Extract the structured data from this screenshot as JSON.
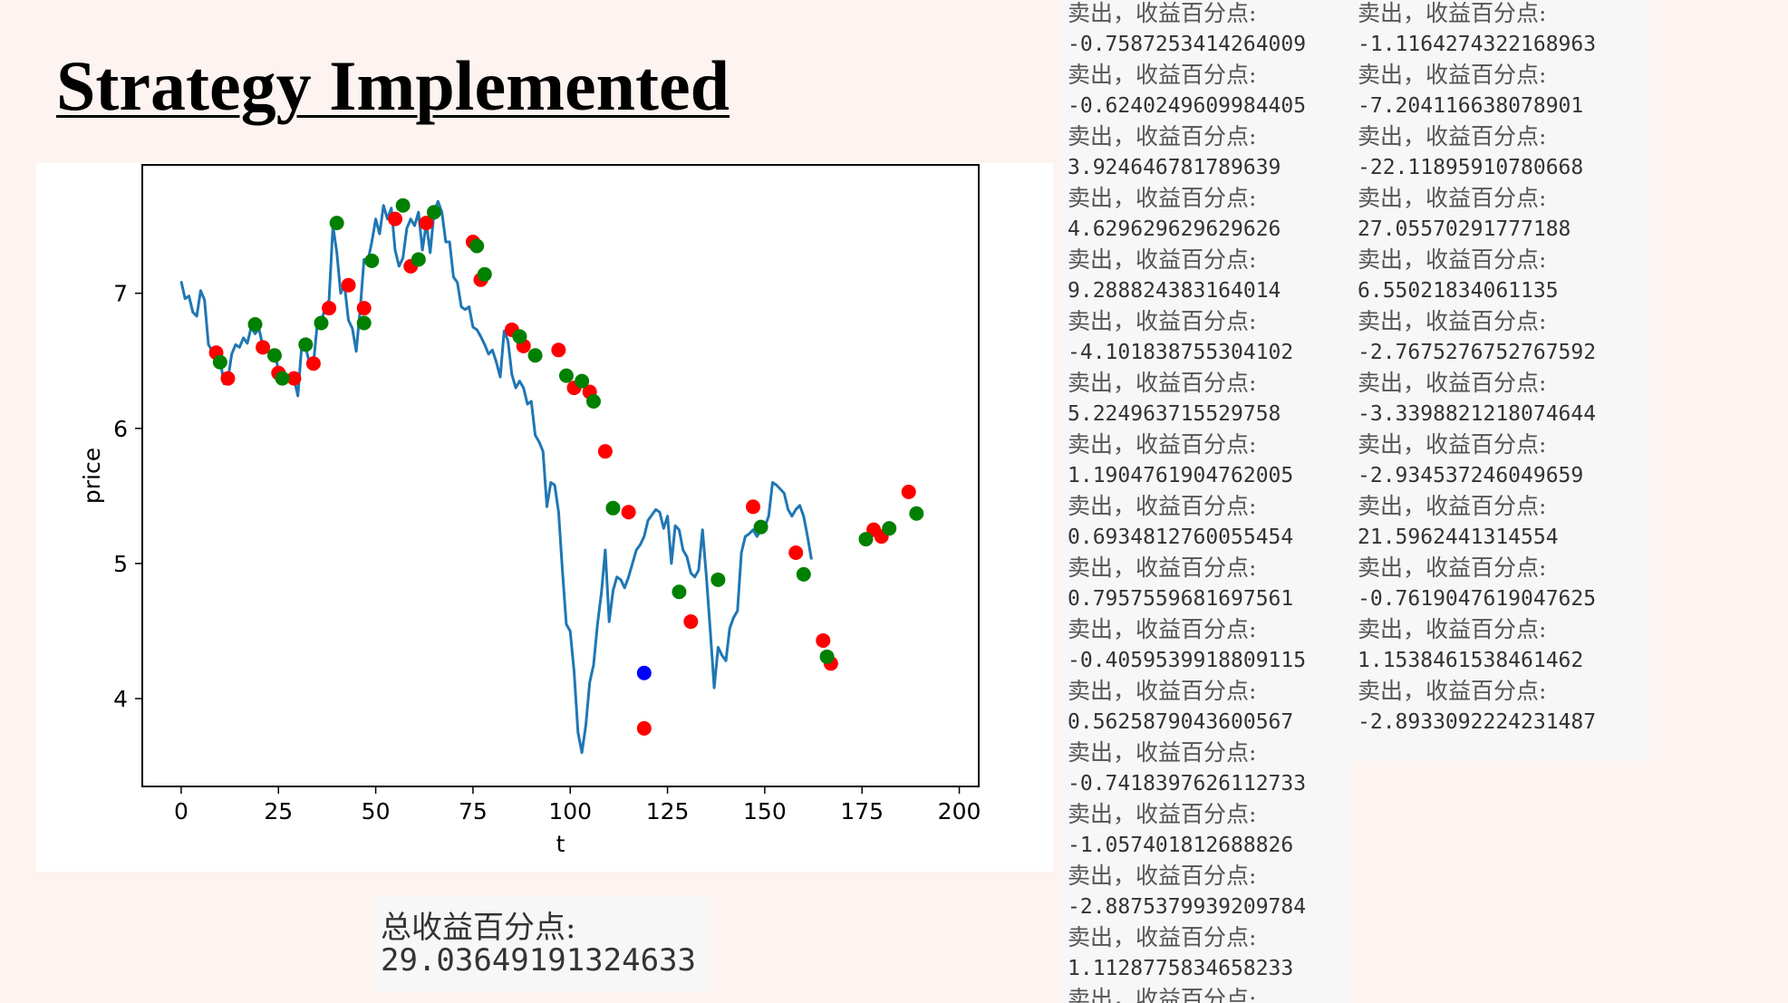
{
  "title": "Strategy Implemented",
  "total": {
    "label": "总收益百分点:",
    "value": "29.03649191324633"
  },
  "log": {
    "label": "卖出，收益百分点:",
    "column1": [
      "-0.7587253414264009",
      "-0.6240249609984405",
      "3.924646781789639",
      "4.629629629629626",
      "9.288824383164014",
      "-4.101838755304102",
      "5.224963715529758",
      "1.1904761904762005",
      "0.6934812760055454",
      "0.7957559681697561",
      "-0.4059539918809115",
      "0.5625879043600567",
      "-0.7418397626112733",
      "-1.057401812688826",
      "-2.8875379939209784",
      "1.1128775834658233"
    ],
    "column2": [
      "-1.1164274322168963",
      "-7.20411663807890​1",
      "-22.11895910780668",
      "27.05570291777188",
      "6.55021834061135",
      "-2.7675276752767592",
      "-3.3398821218074644",
      "-2.934537246049659",
      "21.5962441314554",
      "-0.7619047619047625",
      "1.1538461538461462",
      "-2.8933092224231487"
    ]
  },
  "chart_data": {
    "type": "line",
    "xlabel": "t",
    "ylabel": "price",
    "xlim": [
      -10,
      205
    ],
    "ylim": [
      3.35,
      7.95
    ],
    "xticks": [
      0,
      25,
      50,
      75,
      100,
      125,
      150,
      175,
      200
    ],
    "yticks": [
      4,
      5,
      6,
      7
    ],
    "colors": {
      "line": "#1f77b4",
      "sell": "#ff0000",
      "buy": "#008000",
      "other": "#0000ff"
    },
    "series": [
      {
        "name": "price",
        "points": [
          [
            0,
            7.09
          ],
          [
            1,
            6.96
          ],
          [
            2,
            6.98
          ],
          [
            3,
            6.86
          ],
          [
            4,
            6.83
          ],
          [
            5,
            7.02
          ],
          [
            6,
            6.95
          ],
          [
            7,
            6.62
          ],
          [
            8,
            6.57
          ],
          [
            9,
            6.52
          ],
          [
            10,
            6.51
          ],
          [
            11,
            6.33
          ],
          [
            12,
            6.36
          ],
          [
            13,
            6.55
          ],
          [
            14,
            6.62
          ],
          [
            15,
            6.6
          ],
          [
            16,
            6.67
          ],
          [
            17,
            6.63
          ],
          [
            18,
            6.75
          ],
          [
            19,
            6.7
          ],
          [
            20,
            6.74
          ],
          [
            21,
            6.6
          ],
          [
            22,
            6.58
          ],
          [
            23,
            6.54
          ],
          [
            24,
            6.56
          ],
          [
            25,
            6.43
          ],
          [
            26,
            6.37
          ],
          [
            27,
            6.38
          ],
          [
            28,
            6.35
          ],
          [
            29,
            6.37
          ],
          [
            30,
            6.24
          ],
          [
            31,
            6.62
          ],
          [
            32,
            6.6
          ],
          [
            33,
            6.48
          ],
          [
            34,
            6.48
          ],
          [
            35,
            6.78
          ],
          [
            36,
            6.78
          ],
          [
            37,
            6.9
          ],
          [
            38,
            6.95
          ],
          [
            39,
            7.5
          ],
          [
            40,
            7.3
          ],
          [
            41,
            7.0
          ],
          [
            42,
            7.06
          ],
          [
            43,
            6.8
          ],
          [
            44,
            6.74
          ],
          [
            45,
            6.57
          ],
          [
            46,
            6.88
          ],
          [
            47,
            7.25
          ],
          [
            48,
            7.24
          ],
          [
            49,
            7.38
          ],
          [
            50,
            7.55
          ],
          [
            51,
            7.44
          ],
          [
            52,
            7.65
          ],
          [
            53,
            7.55
          ],
          [
            54,
            7.63
          ],
          [
            55,
            7.32
          ],
          [
            56,
            7.2
          ],
          [
            57,
            7.26
          ],
          [
            58,
            7.48
          ],
          [
            59,
            7.55
          ],
          [
            60,
            7.5
          ],
          [
            61,
            7.6
          ],
          [
            62,
            7.32
          ],
          [
            63,
            7.52
          ],
          [
            64,
            7.3
          ],
          [
            65,
            7.6
          ],
          [
            66,
            7.68
          ],
          [
            67,
            7.6
          ],
          [
            68,
            7.38
          ],
          [
            69,
            7.38
          ],
          [
            70,
            7.12
          ],
          [
            71,
            7.08
          ],
          [
            72,
            6.9
          ],
          [
            73,
            6.88
          ],
          [
            74,
            6.9
          ],
          [
            75,
            6.75
          ],
          [
            76,
            6.73
          ],
          [
            77,
            6.68
          ],
          [
            78,
            6.62
          ],
          [
            79,
            6.55
          ],
          [
            80,
            6.58
          ],
          [
            81,
            6.49
          ],
          [
            82,
            6.38
          ],
          [
            83,
            6.72
          ],
          [
            84,
            6.65
          ],
          [
            85,
            6.4
          ],
          [
            86,
            6.3
          ],
          [
            87,
            6.35
          ],
          [
            88,
            6.3
          ],
          [
            89,
            6.18
          ],
          [
            90,
            6.2
          ],
          [
            91,
            5.95
          ],
          [
            92,
            5.9
          ],
          [
            93,
            5.83
          ],
          [
            94,
            5.42
          ],
          [
            95,
            5.6
          ],
          [
            96,
            5.58
          ],
          [
            97,
            5.38
          ],
          [
            98,
            4.95
          ],
          [
            99,
            4.55
          ],
          [
            100,
            4.5
          ],
          [
            101,
            4.2
          ],
          [
            102,
            3.75
          ],
          [
            103,
            3.6
          ],
          [
            104,
            3.8
          ],
          [
            105,
            4.12
          ],
          [
            106,
            4.25
          ],
          [
            107,
            4.55
          ],
          [
            108,
            4.78
          ],
          [
            109,
            5.1
          ],
          [
            110,
            4.57
          ],
          [
            111,
            4.8
          ],
          [
            112,
            4.9
          ],
          [
            113,
            4.88
          ],
          [
            114,
            4.82
          ],
          [
            115,
            4.9
          ],
          [
            116,
            5.0
          ],
          [
            117,
            5.1
          ],
          [
            118,
            5.14
          ],
          [
            119,
            5.2
          ],
          [
            120,
            5.32
          ],
          [
            121,
            5.36
          ],
          [
            122,
            5.4
          ],
          [
            123,
            5.38
          ],
          [
            124,
            5.26
          ],
          [
            125,
            5.35
          ],
          [
            126,
            5.0
          ],
          [
            127,
            5.28
          ],
          [
            128,
            5.25
          ],
          [
            129,
            5.1
          ],
          [
            130,
            5.05
          ],
          [
            131,
            4.93
          ],
          [
            132,
            4.9
          ],
          [
            133,
            4.95
          ],
          [
            134,
            5.25
          ],
          [
            135,
            4.9
          ],
          [
            136,
            4.5
          ],
          [
            137,
            4.08
          ],
          [
            138,
            4.38
          ],
          [
            139,
            4.32
          ],
          [
            140,
            4.28
          ],
          [
            141,
            4.52
          ],
          [
            142,
            4.6
          ],
          [
            143,
            4.65
          ],
          [
            144,
            5.08
          ],
          [
            145,
            5.2
          ],
          [
            146,
            5.22
          ],
          [
            147,
            5.25
          ],
          [
            148,
            5.2
          ],
          [
            149,
            5.25
          ],
          [
            150,
            5.27
          ],
          [
            151,
            5.35
          ],
          [
            152,
            5.6
          ],
          [
            153,
            5.58
          ],
          [
            154,
            5.55
          ],
          [
            155,
            5.52
          ],
          [
            156,
            5.4
          ],
          [
            157,
            5.35
          ],
          [
            158,
            5.4
          ],
          [
            159,
            5.43
          ],
          [
            160,
            5.35
          ],
          [
            161,
            5.2
          ],
          [
            162,
            5.03
          ]
        ]
      }
    ],
    "markers": {
      "sell": [
        [
          9,
          6.56
        ],
        [
          12,
          6.37
        ],
        [
          21,
          6.6
        ],
        [
          25,
          6.41
        ],
        [
          29,
          6.37
        ],
        [
          34,
          6.48
        ],
        [
          38,
          6.89
        ],
        [
          43,
          7.06
        ],
        [
          47,
          6.89
        ],
        [
          55,
          7.55
        ],
        [
          59,
          7.2
        ],
        [
          63,
          7.52
        ],
        [
          75,
          7.38
        ],
        [
          77,
          7.1
        ],
        [
          85,
          6.73
        ],
        [
          88,
          6.61
        ],
        [
          97,
          6.58
        ],
        [
          101,
          6.3
        ],
        [
          105,
          6.27
        ],
        [
          109,
          5.83
        ],
        [
          115,
          5.38
        ],
        [
          119,
          3.78
        ],
        [
          131,
          4.57
        ],
        [
          147,
          5.42
        ],
        [
          158,
          5.08
        ],
        [
          165,
          4.43
        ],
        [
          167,
          4.26
        ],
        [
          178,
          5.25
        ],
        [
          180,
          5.2
        ],
        [
          187,
          5.53
        ]
      ],
      "buy": [
        [
          10,
          6.49
        ],
        [
          19,
          6.77
        ],
        [
          24,
          6.54
        ],
        [
          26,
          6.37
        ],
        [
          32,
          6.62
        ],
        [
          36,
          6.78
        ],
        [
          40,
          7.52
        ],
        [
          47,
          6.78
        ],
        [
          49,
          7.24
        ],
        [
          57,
          7.65
        ],
        [
          61,
          7.25
        ],
        [
          65,
          7.6
        ],
        [
          76,
          7.35
        ],
        [
          78,
          7.14
        ],
        [
          87,
          6.68
        ],
        [
          91,
          6.54
        ],
        [
          99,
          6.39
        ],
        [
          103,
          6.35
        ],
        [
          106,
          6.2
        ],
        [
          111,
          5.41
        ],
        [
          128,
          4.79
        ],
        [
          138,
          4.88
        ],
        [
          149,
          5.27
        ],
        [
          160,
          4.92
        ],
        [
          166,
          4.31
        ],
        [
          176,
          5.18
        ],
        [
          182,
          5.26
        ],
        [
          189,
          5.37
        ]
      ],
      "other": [
        [
          119,
          4.19
        ]
      ]
    }
  }
}
